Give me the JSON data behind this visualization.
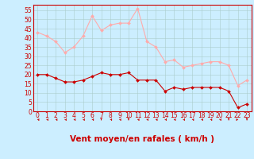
{
  "x": [
    0,
    1,
    2,
    3,
    4,
    5,
    6,
    7,
    8,
    9,
    10,
    11,
    12,
    13,
    14,
    15,
    16,
    17,
    18,
    19,
    20,
    21,
    22,
    23
  ],
  "wind_avg": [
    20,
    20,
    18,
    16,
    16,
    17,
    19,
    21,
    20,
    20,
    21,
    17,
    17,
    17,
    11,
    13,
    12,
    13,
    13,
    13,
    13,
    11,
    2,
    4
  ],
  "wind_gust": [
    43,
    41,
    38,
    32,
    35,
    41,
    52,
    44,
    47,
    48,
    48,
    56,
    38,
    35,
    27,
    28,
    24,
    25,
    26,
    27,
    27,
    25,
    14,
    17
  ],
  "avg_color": "#cc0000",
  "gust_color": "#ffaaaa",
  "bg_color": "#cceeff",
  "grid_color": "#aacccc",
  "xlabel": "Vent moyen/en rafales ( km/h )",
  "xlabel_color": "#cc0000",
  "ylabel_ticks": [
    0,
    5,
    10,
    15,
    20,
    25,
    30,
    35,
    40,
    45,
    50,
    55
  ],
  "xlim": [
    -0.5,
    23.5
  ],
  "ylim": [
    0,
    58
  ],
  "tick_fontsize": 5.5,
  "xlabel_fontsize": 7.5,
  "spine_color": "#cc0000",
  "arrow_angles_deg": [
    315,
    315,
    315,
    315,
    315,
    315,
    315,
    270,
    315,
    315,
    270,
    315,
    315,
    315,
    315,
    315,
    315,
    315,
    315,
    315,
    315,
    270,
    225,
    270
  ]
}
